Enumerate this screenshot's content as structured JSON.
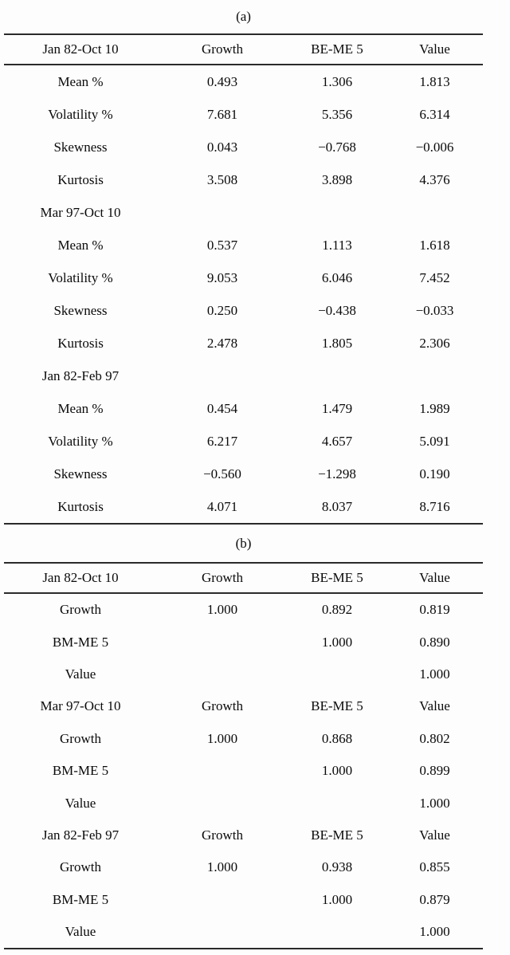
{
  "panel_a": {
    "title": "(a)",
    "header": [
      "Jan 82-Oct 10",
      "Growth",
      "BE-ME 5",
      "Value"
    ],
    "rows": [
      [
        "Mean %",
        "0.493",
        "1.306",
        "1.813"
      ],
      [
        "Volatility %",
        "7.681",
        "5.356",
        "6.314"
      ],
      [
        "Skewness",
        "0.043",
        "−0.768",
        "−0.006"
      ],
      [
        "Kurtosis",
        "3.508",
        "3.898",
        "4.376"
      ],
      [
        "Mar 97-Oct 10",
        "",
        "",
        ""
      ],
      [
        "Mean %",
        "0.537",
        "1.113",
        "1.618"
      ],
      [
        "Volatility %",
        "9.053",
        "6.046",
        "7.452"
      ],
      [
        "Skewness",
        "0.250",
        "−0.438",
        "−0.033"
      ],
      [
        "Kurtosis",
        "2.478",
        "1.805",
        "2.306"
      ],
      [
        "Jan 82-Feb 97",
        "",
        "",
        ""
      ],
      [
        "Mean %",
        "0.454",
        "1.479",
        "1.989"
      ],
      [
        "Volatility %",
        "6.217",
        "4.657",
        "5.091"
      ],
      [
        "Skewness",
        "−0.560",
        "−1.298",
        "0.190"
      ],
      [
        "Kurtosis",
        "4.071",
        "8.037",
        "8.716"
      ]
    ]
  },
  "panel_b": {
    "title": "(b)",
    "header": [
      "Jan 82-Oct 10",
      "Growth",
      "BE-ME 5",
      "Value"
    ],
    "rows": [
      [
        "Growth",
        "1.000",
        "0.892",
        "0.819"
      ],
      [
        "BM-ME 5",
        "",
        "1.000",
        "0.890"
      ],
      [
        "Value",
        "",
        "",
        "1.000"
      ],
      [
        "Mar 97-Oct 10",
        "Growth",
        "BE-ME 5",
        "Value"
      ],
      [
        "Growth",
        "1.000",
        "0.868",
        "0.802"
      ],
      [
        "BM-ME 5",
        "",
        "1.000",
        "0.899"
      ],
      [
        "Value",
        "",
        "",
        "1.000"
      ],
      [
        "Jan 82-Feb 97",
        "Growth",
        "BE-ME 5",
        "Value"
      ],
      [
        "Growth",
        "1.000",
        "0.938",
        "0.855"
      ],
      [
        "BM-ME 5",
        "",
        "1.000",
        "0.879"
      ],
      [
        "Value",
        "",
        "",
        "1.000"
      ]
    ]
  }
}
